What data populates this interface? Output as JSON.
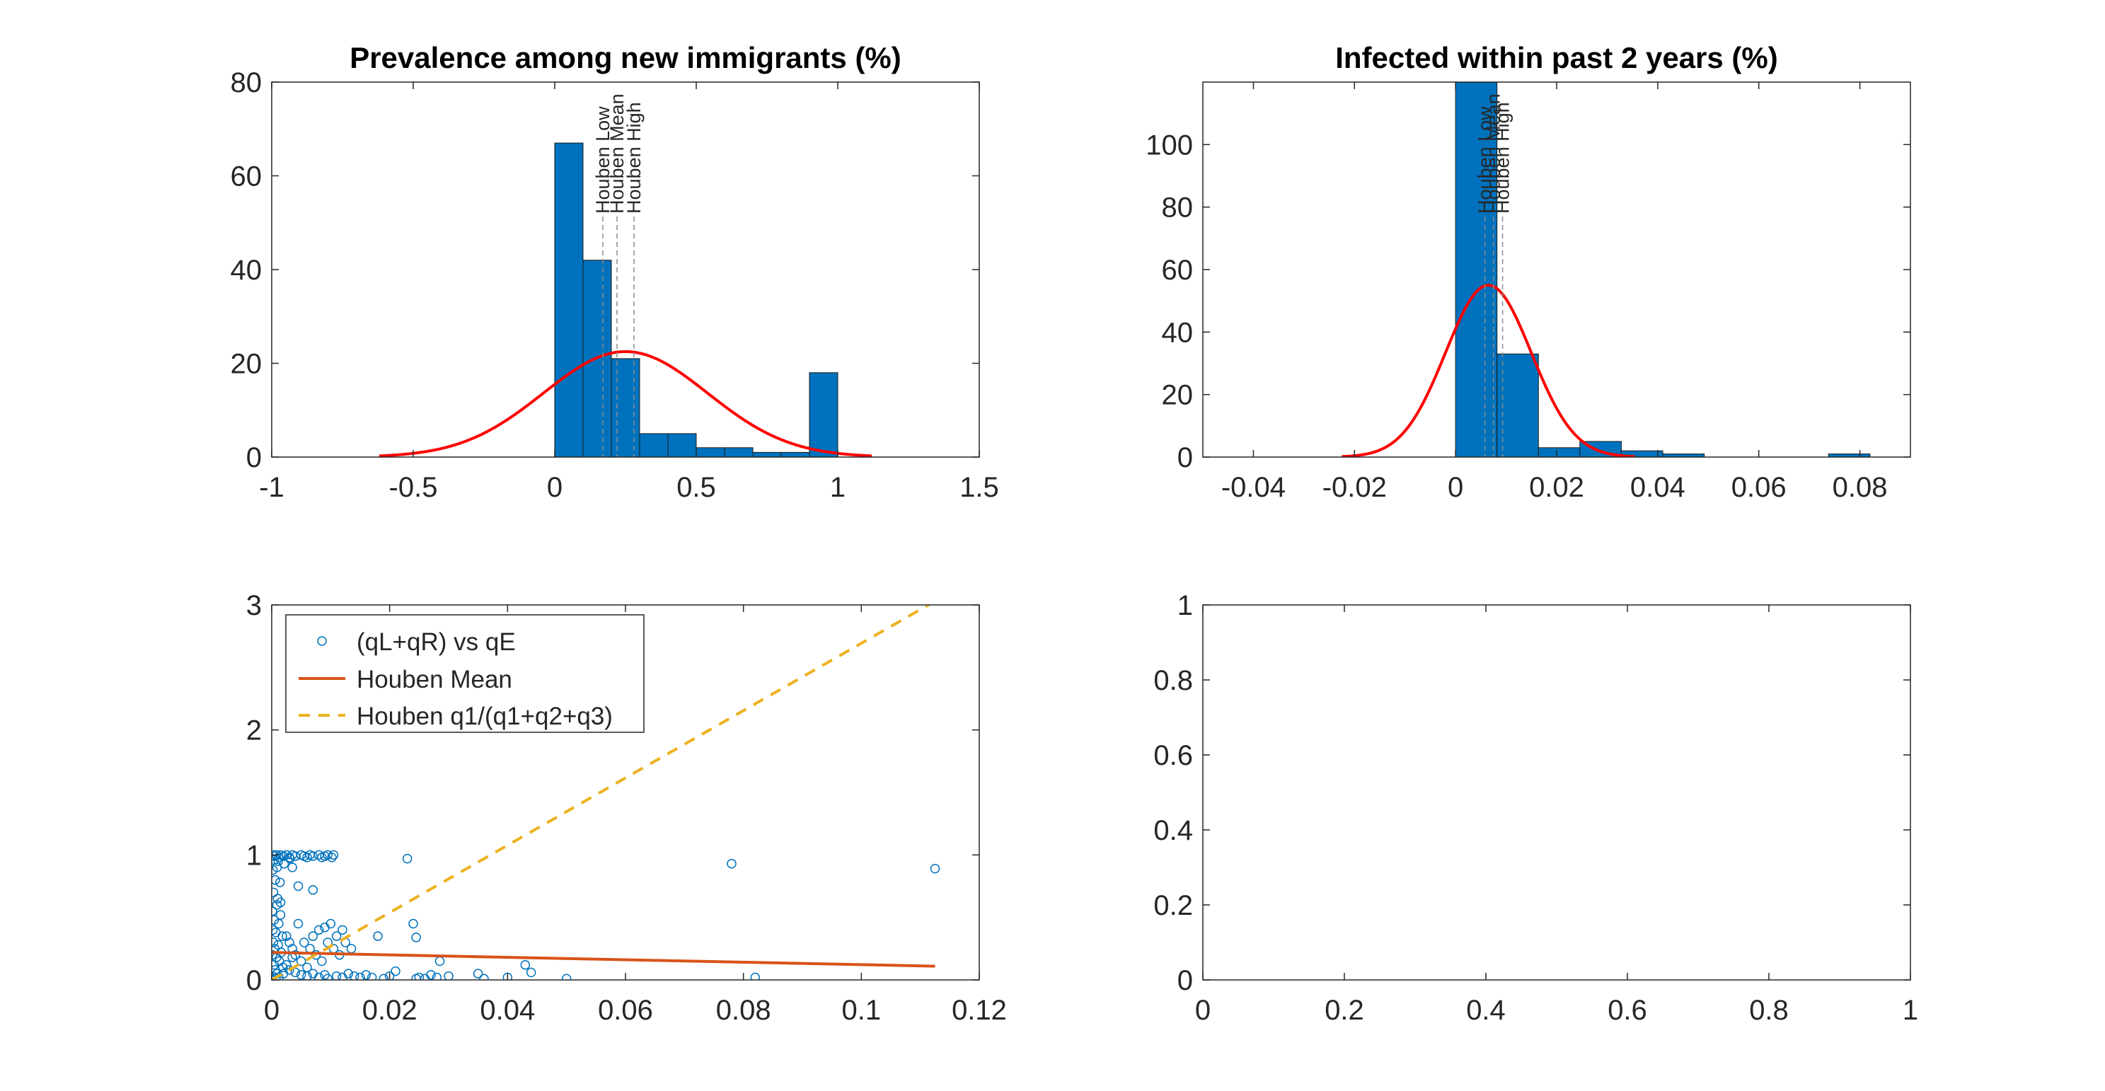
{
  "colors": {
    "bar_fill": "#0072BD",
    "bar_edge": "#1a1a1a",
    "fit_curve": "#FF0000",
    "scatter": "#0072BD",
    "houben_mean_line": "#D95319",
    "houben_ratio_line": "#EDB120",
    "marker_line": "#8c8c8c",
    "axis": "#262626"
  },
  "chart_data": [
    {
      "id": "p1",
      "type": "bar",
      "title": "Prevalence among new immigrants (%)",
      "xlim": [
        -1,
        1.5
      ],
      "ylim": [
        0,
        80
      ],
      "xticks": [
        -1,
        -0.5,
        0,
        0.5,
        1,
        1.5
      ],
      "yticks": [
        0,
        20,
        40,
        60,
        80
      ],
      "xtick_labels": [
        "-1",
        "-0.5",
        "0",
        "0.5",
        "1",
        "1.5"
      ],
      "ytick_labels": [
        "0",
        "20",
        "40",
        "60",
        "80"
      ],
      "bins": {
        "start": 0,
        "width": 0.1,
        "counts": [
          67,
          42,
          21,
          5,
          5,
          2,
          2,
          1,
          1,
          18
        ]
      },
      "fit": {
        "mean": 0.25,
        "sigma": 0.29,
        "peak": 22.5,
        "x_from": -0.62,
        "x_to": 1.12
      },
      "markers": [
        {
          "x": 0.17,
          "label": "Houben Low"
        },
        {
          "x": 0.22,
          "label": "Houben Mean"
        },
        {
          "x": 0.28,
          "label": "Houben High"
        }
      ]
    },
    {
      "id": "p2",
      "type": "bar",
      "title": "Infected within past 2 years (%)",
      "xlim": [
        -0.05,
        0.09
      ],
      "ylim": [
        0,
        120
      ],
      "xticks": [
        -0.04,
        -0.02,
        0,
        0.02,
        0.04,
        0.06,
        0.08
      ],
      "yticks": [
        0,
        20,
        40,
        60,
        80,
        100
      ],
      "xtick_labels": [
        "-0.04",
        "-0.02",
        "0",
        "0.02",
        "0.04",
        "0.06",
        "0.08"
      ],
      "ytick_labels": [
        "0",
        "20",
        "40",
        "60",
        "80",
        "100"
      ],
      "bins": {
        "start": 0,
        "width": 0.0082,
        "counts": [
          125,
          33,
          3,
          5,
          2,
          1,
          0,
          0,
          0,
          1
        ]
      },
      "fit": {
        "mean": 0.0065,
        "sigma": 0.0085,
        "peak": 55,
        "x_from": -0.0225,
        "x_to": 0.0355
      },
      "markers": [
        {
          "x": 0.0058,
          "label": "Houben Low"
        },
        {
          "x": 0.0075,
          "label": "Houben Mean"
        },
        {
          "x": 0.0093,
          "label": "Houben High"
        }
      ]
    },
    {
      "id": "p3",
      "type": "scatter",
      "title": "",
      "xlim": [
        0,
        0.12
      ],
      "ylim": [
        0,
        3
      ],
      "xticks": [
        0,
        0.02,
        0.04,
        0.06,
        0.08,
        0.1,
        0.12
      ],
      "yticks": [
        0,
        1,
        2,
        3
      ],
      "xtick_labels": [
        "0",
        "0.02",
        "0.04",
        "0.06",
        "0.08",
        "0.1",
        "0.12"
      ],
      "ytick_labels": [
        "0",
        "1",
        "2",
        "3"
      ],
      "legend": {
        "position": "top-left",
        "entries": [
          "(qL+qR) vs qE",
          "Houben Mean",
          "Houben q1/(q1+q2+q3)"
        ]
      },
      "points": [
        [
          0.0002,
          1.0
        ],
        [
          0.0005,
          0.99
        ],
        [
          0.0008,
          1.0
        ],
        [
          0.0012,
          0.98
        ],
        [
          0.0015,
          1.0
        ],
        [
          0.002,
          0.99
        ],
        [
          0.0025,
          1.0
        ],
        [
          0.003,
          0.98
        ],
        [
          0.0035,
          1.0
        ],
        [
          0.004,
          0.99
        ],
        [
          0.005,
          1.0
        ],
        [
          0.0055,
          0.99
        ],
        [
          0.006,
          0.98
        ],
        [
          0.0065,
          1.0
        ],
        [
          0.007,
          0.99
        ],
        [
          0.008,
          1.0
        ],
        [
          0.0085,
          0.98
        ],
        [
          0.009,
          0.99
        ],
        [
          0.0095,
          1.0
        ],
        [
          0.0102,
          0.98
        ],
        [
          0.0105,
          1.0
        ],
        [
          0.0004,
          0.96
        ],
        [
          0.0011,
          0.95
        ],
        [
          0.0021,
          0.93
        ],
        [
          0.0031,
          0.97
        ],
        [
          0.0002,
          0.88
        ],
        [
          0.0009,
          0.9
        ],
        [
          0.0006,
          0.8
        ],
        [
          0.0014,
          0.78
        ],
        [
          0.0003,
          0.7
        ],
        [
          0.001,
          0.65
        ],
        [
          0.007,
          0.72
        ],
        [
          0.0009,
          0.6
        ],
        [
          0.0001,
          0.55
        ],
        [
          0.0015,
          0.52
        ],
        [
          0.0004,
          0.48
        ],
        [
          0.0012,
          0.45
        ],
        [
          0.0002,
          0.4
        ],
        [
          0.0007,
          0.38
        ],
        [
          0.0018,
          0.35
        ],
        [
          0.0003,
          0.3
        ],
        [
          0.0011,
          0.28
        ],
        [
          0.0005,
          0.25
        ],
        [
          0.0016,
          0.22
        ],
        [
          0.0001,
          0.2
        ],
        [
          0.0008,
          0.18
        ],
        [
          0.0013,
          0.15
        ],
        [
          0.0004,
          0.12
        ],
        [
          0.0019,
          0.1
        ],
        [
          0.0006,
          0.08
        ],
        [
          0.0009,
          0.05
        ],
        [
          0.0002,
          0.03
        ],
        [
          0.0012,
          0.02
        ],
        [
          0.0007,
          0.01
        ],
        [
          0.0025,
          0.35
        ],
        [
          0.003,
          0.3
        ],
        [
          0.0035,
          0.25
        ],
        [
          0.004,
          0.2
        ],
        [
          0.0045,
          0.45
        ],
        [
          0.005,
          0.15
        ],
        [
          0.0055,
          0.3
        ],
        [
          0.006,
          0.1
        ],
        [
          0.0065,
          0.25
        ],
        [
          0.007,
          0.35
        ],
        [
          0.0075,
          0.2
        ],
        [
          0.008,
          0.4
        ],
        [
          0.0085,
          0.15
        ],
        [
          0.009,
          0.42
        ],
        [
          0.0095,
          0.3
        ],
        [
          0.01,
          0.45
        ],
        [
          0.0105,
          0.25
        ],
        [
          0.011,
          0.35
        ],
        [
          0.0115,
          0.2
        ],
        [
          0.012,
          0.4
        ],
        [
          0.0125,
          0.3
        ],
        [
          0.013,
          0.05
        ],
        [
          0.0135,
          0.25
        ],
        [
          0.014,
          0.03
        ],
        [
          0.015,
          0.02
        ],
        [
          0.016,
          0.04
        ],
        [
          0.017,
          0.02
        ],
        [
          0.018,
          0.35
        ],
        [
          0.019,
          0.01
        ],
        [
          0.02,
          0.03
        ],
        [
          0.021,
          0.07
        ],
        [
          0.023,
          0.97
        ],
        [
          0.024,
          0.45
        ],
        [
          0.025,
          0.02
        ],
        [
          0.026,
          0.01
        ],
        [
          0.027,
          0.04
        ],
        [
          0.028,
          0.02
        ],
        [
          0.03,
          0.03
        ],
        [
          0.035,
          0.05
        ],
        [
          0.036,
          0.01
        ],
        [
          0.04,
          0.02
        ],
        [
          0.043,
          0.12
        ],
        [
          0.044,
          0.06
        ],
        [
          0.05,
          0.01
        ],
        [
          0.078,
          0.93
        ],
        [
          0.082,
          0.02
        ],
        [
          0.1125,
          0.89
        ],
        [
          0.0245,
          0.34
        ],
        [
          0.0285,
          0.15
        ],
        [
          0.0245,
          0.01
        ],
        [
          0.0035,
          0.9
        ],
        [
          0.0045,
          0.75
        ],
        [
          0.0015,
          0.62
        ],
        [
          0.002,
          0.05
        ],
        [
          0.003,
          0.08
        ],
        [
          0.004,
          0.06
        ],
        [
          0.005,
          0.04
        ],
        [
          0.006,
          0.03
        ],
        [
          0.007,
          0.05
        ],
        [
          0.008,
          0.02
        ],
        [
          0.009,
          0.04
        ],
        [
          0.0095,
          0.01
        ],
        [
          0.011,
          0.03
        ],
        [
          0.012,
          0.02
        ],
        [
          0.0025,
          0.12
        ],
        [
          0.0035,
          0.18
        ]
      ],
      "houben_mean_line": {
        "x": [
          0,
          0.1125
        ],
        "y": [
          0.22,
          0.11
        ]
      },
      "houben_ratio_line": {
        "x": [
          0,
          0.1125
        ],
        "y": [
          0.0,
          3.03
        ]
      }
    },
    {
      "id": "p4",
      "type": "line",
      "title": "",
      "xlim": [
        0,
        1
      ],
      "ylim": [
        0,
        1
      ],
      "xticks": [
        0,
        0.2,
        0.4,
        0.6,
        0.8,
        1
      ],
      "yticks": [
        0,
        0.2,
        0.4,
        0.6,
        0.8,
        1
      ],
      "xtick_labels": [
        "0",
        "0.2",
        "0.4",
        "0.6",
        "0.8",
        "1"
      ],
      "ytick_labels": [
        "0",
        "0.2",
        "0.4",
        "0.6",
        "0.8",
        "1"
      ]
    }
  ]
}
